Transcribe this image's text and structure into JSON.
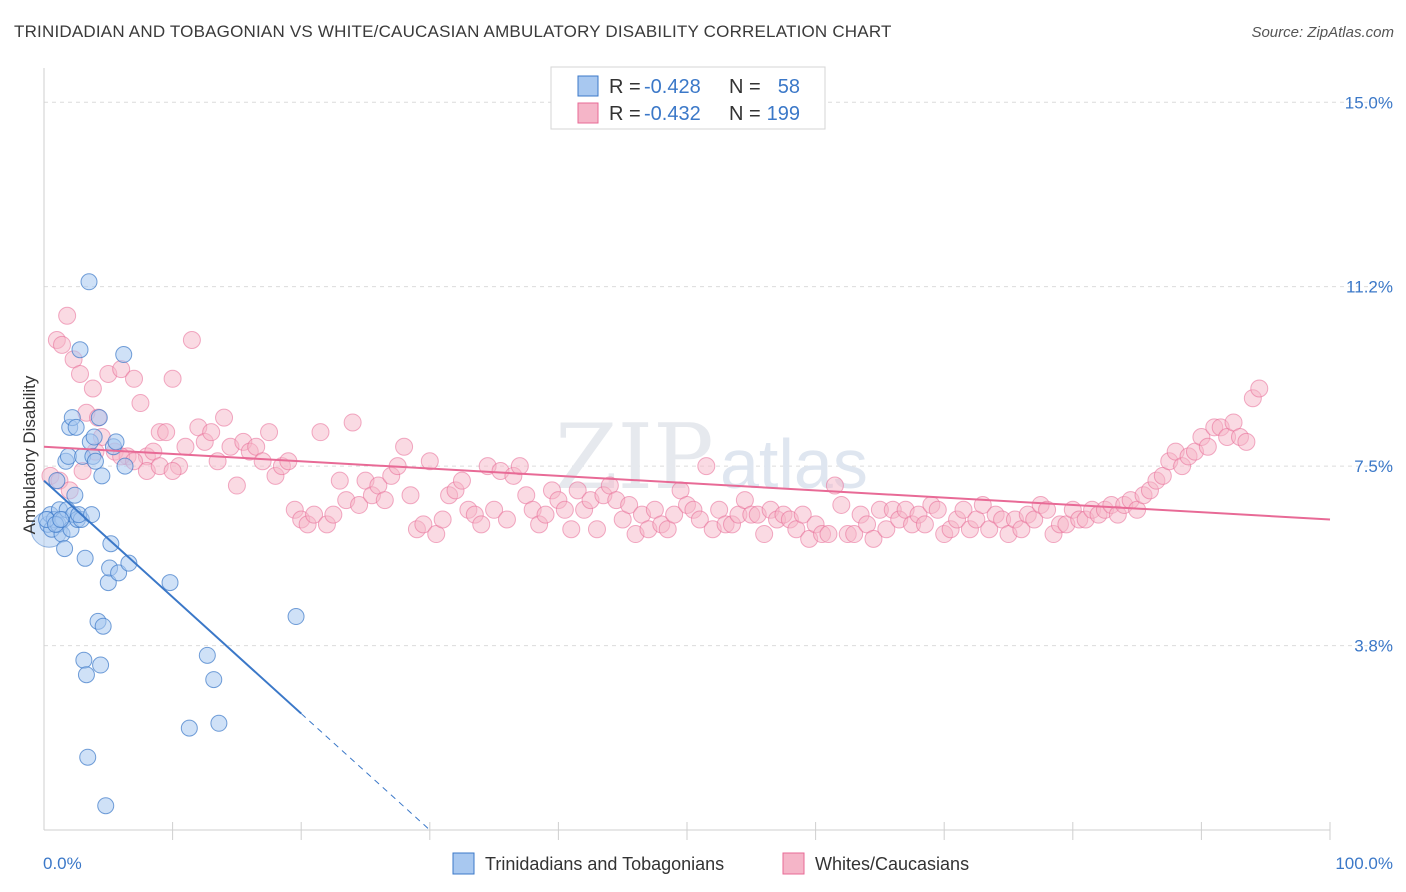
{
  "title": "TRINIDADIAN AND TOBAGONIAN VS WHITE/CAUCASIAN AMBULATORY DISABILITY CORRELATION CHART",
  "source": "Source: ZipAtlas.com",
  "watermark": {
    "zip": "ZIP",
    "atlas": "atlas"
  },
  "colors": {
    "blue": "#3b78c8",
    "blue_fill": "#a8c8f0",
    "pink": "#e86a96",
    "pink_fill": "#f5b5c8",
    "grid": "#dcdcdc"
  },
  "legend": {
    "rows": [
      {
        "r_label": "R = ",
        "r_value": "-0.428",
        "n_label": "N = ",
        "n_value": "58"
      },
      {
        "r_label": "R = ",
        "r_value": "-0.432",
        "n_label": "N = ",
        "n_value": "199"
      }
    ]
  },
  "chart_data": {
    "type": "scatter",
    "title": "TRINIDADIAN AND TOBAGONIAN VS WHITE/CAUCASIAN AMBULATORY DISABILITY CORRELATION CHART",
    "xlabel": "",
    "ylabel": "Ambulatory Disability",
    "xlim": [
      0,
      100
    ],
    "ylim": [
      0,
      15.5
    ],
    "x_tick_labels": [
      "0.0%",
      "100.0%"
    ],
    "y_ticks": [
      3.8,
      7.5,
      11.2,
      15.0
    ],
    "y_tick_labels": [
      "3.8%",
      "7.5%",
      "11.2%",
      "15.0%"
    ],
    "series": [
      {
        "name": "Trinidadians and Tobagonians",
        "color": "#3b78c8",
        "r": -0.428,
        "n": 58,
        "trend": {
          "x0": 0,
          "y0": 7.2,
          "x1": 20,
          "y1": 2.4,
          "dash_to_x": 30,
          "dash_to_y": 0.0
        },
        "points": [
          [
            0.3,
            6.3
          ],
          [
            0.5,
            6.5
          ],
          [
            0.6,
            6.2
          ],
          [
            0.8,
            6.4
          ],
          [
            1.0,
            7.2
          ],
          [
            1.1,
            6.3
          ],
          [
            1.2,
            6.6
          ],
          [
            1.4,
            6.1
          ],
          [
            1.5,
            6.4
          ],
          [
            1.6,
            5.8
          ],
          [
            1.7,
            7.6
          ],
          [
            1.8,
            6.6
          ],
          [
            1.9,
            7.7
          ],
          [
            2.0,
            8.3
          ],
          [
            2.1,
            6.2
          ],
          [
            2.2,
            8.5
          ],
          [
            2.3,
            6.5
          ],
          [
            2.4,
            6.9
          ],
          [
            2.5,
            8.3
          ],
          [
            2.6,
            6.4
          ],
          [
            2.8,
            9.9
          ],
          [
            2.9,
            6.4
          ],
          [
            3.0,
            7.7
          ],
          [
            3.1,
            3.5
          ],
          [
            3.2,
            5.6
          ],
          [
            3.3,
            3.2
          ],
          [
            3.4,
            1.5
          ],
          [
            3.5,
            11.3
          ],
          [
            3.6,
            8.0
          ],
          [
            3.8,
            7.7
          ],
          [
            3.9,
            8.1
          ],
          [
            4.0,
            7.6
          ],
          [
            4.2,
            4.3
          ],
          [
            4.3,
            8.5
          ],
          [
            4.4,
            3.4
          ],
          [
            4.5,
            7.3
          ],
          [
            4.6,
            4.2
          ],
          [
            4.8,
            0.5
          ],
          [
            5.0,
            5.1
          ],
          [
            5.1,
            5.4
          ],
          [
            5.2,
            5.9
          ],
          [
            5.4,
            7.9
          ],
          [
            5.6,
            8.0
          ],
          [
            5.8,
            5.3
          ],
          [
            6.2,
            9.8
          ],
          [
            6.3,
            7.5
          ],
          [
            6.6,
            5.5
          ],
          [
            9.8,
            5.1
          ],
          [
            11.3,
            2.1
          ],
          [
            12.7,
            3.6
          ],
          [
            13.2,
            3.1
          ],
          [
            13.6,
            2.2
          ],
          [
            19.6,
            4.4
          ],
          [
            0.2,
            6.4
          ],
          [
            0.9,
            6.3
          ],
          [
            1.3,
            6.4
          ],
          [
            2.7,
            6.5
          ],
          [
            3.7,
            6.5
          ]
        ]
      },
      {
        "name": "Whites/Caucasians",
        "color": "#e86a96",
        "r": -0.432,
        "n": 199,
        "trend": {
          "x0": 0,
          "y0": 7.9,
          "x1": 100,
          "y1": 6.4
        },
        "points": [
          [
            0.5,
            7.3
          ],
          [
            1.0,
            10.1
          ],
          [
            1.4,
            10.0
          ],
          [
            1.8,
            10.6
          ],
          [
            2.3,
            9.7
          ],
          [
            2.8,
            9.4
          ],
          [
            3.3,
            8.6
          ],
          [
            3.8,
            9.1
          ],
          [
            4.2,
            8.5
          ],
          [
            4.5,
            8.1
          ],
          [
            5.0,
            9.4
          ],
          [
            5.5,
            7.8
          ],
          [
            6.0,
            9.5
          ],
          [
            6.5,
            7.7
          ],
          [
            7.0,
            9.3
          ],
          [
            7.5,
            8.8
          ],
          [
            8.0,
            7.7
          ],
          [
            8.5,
            7.8
          ],
          [
            9.0,
            8.2
          ],
          [
            9.5,
            8.2
          ],
          [
            10.0,
            9.3
          ],
          [
            10.5,
            7.5
          ],
          [
            11.0,
            7.9
          ],
          [
            11.5,
            10.1
          ],
          [
            12.0,
            8.3
          ],
          [
            12.5,
            8.0
          ],
          [
            13.0,
            8.2
          ],
          [
            13.5,
            7.6
          ],
          [
            14.0,
            8.5
          ],
          [
            14.5,
            7.9
          ],
          [
            15.0,
            7.1
          ],
          [
            15.5,
            8.0
          ],
          [
            16.0,
            7.8
          ],
          [
            16.5,
            7.9
          ],
          [
            17.0,
            7.6
          ],
          [
            17.5,
            8.2
          ],
          [
            18.0,
            7.3
          ],
          [
            18.5,
            7.5
          ],
          [
            19.0,
            7.6
          ],
          [
            19.5,
            6.6
          ],
          [
            20.0,
            6.4
          ],
          [
            20.5,
            6.3
          ],
          [
            21.0,
            6.5
          ],
          [
            21.5,
            8.2
          ],
          [
            22.0,
            6.3
          ],
          [
            22.5,
            6.5
          ],
          [
            23.0,
            7.2
          ],
          [
            23.5,
            6.8
          ],
          [
            24.0,
            8.4
          ],
          [
            24.5,
            6.7
          ],
          [
            25.0,
            7.2
          ],
          [
            25.5,
            6.9
          ],
          [
            26.0,
            7.1
          ],
          [
            26.5,
            6.8
          ],
          [
            27.0,
            7.3
          ],
          [
            27.5,
            7.5
          ],
          [
            28.0,
            7.9
          ],
          [
            28.5,
            6.9
          ],
          [
            29.0,
            6.2
          ],
          [
            29.5,
            6.3
          ],
          [
            30.0,
            7.6
          ],
          [
            30.5,
            6.1
          ],
          [
            31.0,
            6.4
          ],
          [
            31.5,
            6.9
          ],
          [
            32.0,
            7.0
          ],
          [
            32.5,
            7.2
          ],
          [
            33.0,
            6.6
          ],
          [
            33.5,
            6.5
          ],
          [
            34.0,
            6.3
          ],
          [
            34.5,
            7.5
          ],
          [
            35.0,
            6.6
          ],
          [
            35.5,
            7.4
          ],
          [
            36.0,
            6.4
          ],
          [
            36.5,
            7.3
          ],
          [
            37.0,
            7.5
          ],
          [
            37.5,
            6.9
          ],
          [
            38.0,
            6.6
          ],
          [
            38.5,
            6.3
          ],
          [
            39.0,
            6.5
          ],
          [
            39.5,
            7.0
          ],
          [
            40.0,
            6.8
          ],
          [
            40.5,
            6.6
          ],
          [
            41.0,
            6.2
          ],
          [
            41.5,
            7.0
          ],
          [
            42.0,
            6.6
          ],
          [
            42.5,
            6.8
          ],
          [
            43.0,
            6.2
          ],
          [
            43.5,
            6.9
          ],
          [
            44.0,
            7.1
          ],
          [
            44.5,
            6.8
          ],
          [
            45.0,
            6.4
          ],
          [
            45.5,
            6.7
          ],
          [
            46.0,
            6.1
          ],
          [
            46.5,
            6.5
          ],
          [
            47.0,
            6.2
          ],
          [
            47.5,
            6.6
          ],
          [
            48.0,
            6.3
          ],
          [
            48.5,
            6.2
          ],
          [
            49.0,
            6.5
          ],
          [
            49.5,
            7.0
          ],
          [
            50.0,
            6.7
          ],
          [
            50.5,
            6.6
          ],
          [
            51.0,
            6.4
          ],
          [
            51.5,
            7.5
          ],
          [
            52.0,
            6.2
          ],
          [
            52.5,
            6.6
          ],
          [
            53.0,
            6.3
          ],
          [
            53.5,
            6.3
          ],
          [
            54.0,
            6.5
          ],
          [
            54.5,
            6.8
          ],
          [
            55.0,
            6.5
          ],
          [
            55.5,
            6.5
          ],
          [
            56.0,
            6.1
          ],
          [
            56.5,
            6.6
          ],
          [
            57.0,
            6.4
          ],
          [
            57.5,
            6.5
          ],
          [
            58.0,
            6.4
          ],
          [
            58.5,
            6.2
          ],
          [
            59.0,
            6.5
          ],
          [
            59.5,
            6.0
          ],
          [
            60.0,
            6.3
          ],
          [
            60.5,
            6.1
          ],
          [
            61.0,
            6.1
          ],
          [
            61.5,
            7.1
          ],
          [
            62.0,
            6.7
          ],
          [
            62.5,
            6.1
          ],
          [
            63.0,
            6.1
          ],
          [
            63.5,
            6.5
          ],
          [
            64.0,
            6.3
          ],
          [
            64.5,
            6.0
          ],
          [
            65.0,
            6.6
          ],
          [
            65.5,
            6.2
          ],
          [
            66.0,
            6.6
          ],
          [
            66.5,
            6.4
          ],
          [
            67.0,
            6.6
          ],
          [
            67.5,
            6.3
          ],
          [
            68.0,
            6.5
          ],
          [
            68.5,
            6.3
          ],
          [
            69.0,
            6.7
          ],
          [
            69.5,
            6.6
          ],
          [
            70.0,
            6.1
          ],
          [
            70.5,
            6.2
          ],
          [
            71.0,
            6.4
          ],
          [
            71.5,
            6.6
          ],
          [
            72.0,
            6.2
          ],
          [
            72.5,
            6.4
          ],
          [
            73.0,
            6.7
          ],
          [
            73.5,
            6.2
          ],
          [
            74.0,
            6.5
          ],
          [
            74.5,
            6.4
          ],
          [
            75.0,
            6.1
          ],
          [
            75.5,
            6.4
          ],
          [
            76.0,
            6.2
          ],
          [
            76.5,
            6.5
          ],
          [
            77.0,
            6.4
          ],
          [
            77.5,
            6.7
          ],
          [
            78.0,
            6.6
          ],
          [
            78.5,
            6.1
          ],
          [
            79.0,
            6.3
          ],
          [
            79.5,
            6.3
          ],
          [
            80.0,
            6.6
          ],
          [
            80.5,
            6.4
          ],
          [
            81.0,
            6.4
          ],
          [
            81.5,
            6.6
          ],
          [
            82.0,
            6.5
          ],
          [
            82.5,
            6.6
          ],
          [
            83.0,
            6.7
          ],
          [
            83.5,
            6.5
          ],
          [
            84.0,
            6.7
          ],
          [
            84.5,
            6.8
          ],
          [
            85.0,
            6.6
          ],
          [
            85.5,
            6.9
          ],
          [
            86.0,
            7.0
          ],
          [
            86.5,
            7.2
          ],
          [
            87.0,
            7.3
          ],
          [
            87.5,
            7.6
          ],
          [
            88.0,
            7.8
          ],
          [
            88.5,
            7.5
          ],
          [
            89.0,
            7.7
          ],
          [
            89.5,
            7.8
          ],
          [
            90.0,
            8.1
          ],
          [
            90.5,
            7.9
          ],
          [
            91.0,
            8.3
          ],
          [
            91.5,
            8.3
          ],
          [
            92.0,
            8.1
          ],
          [
            92.5,
            8.4
          ],
          [
            93.0,
            8.1
          ],
          [
            93.5,
            8.0
          ],
          [
            94.0,
            8.9
          ],
          [
            94.5,
            9.1
          ],
          [
            1.2,
            7.2
          ],
          [
            2.0,
            7.0
          ],
          [
            3.0,
            7.4
          ],
          [
            4.0,
            7.8
          ],
          [
            6.0,
            7.7
          ],
          [
            7.0,
            7.6
          ],
          [
            8.0,
            7.4
          ],
          [
            9.0,
            7.5
          ],
          [
            10.0,
            7.4
          ]
        ]
      }
    ]
  },
  "bottom_legend": [
    {
      "label": "Trinidadians and Tobagonians"
    },
    {
      "label": "Whites/Caucasians"
    }
  ]
}
